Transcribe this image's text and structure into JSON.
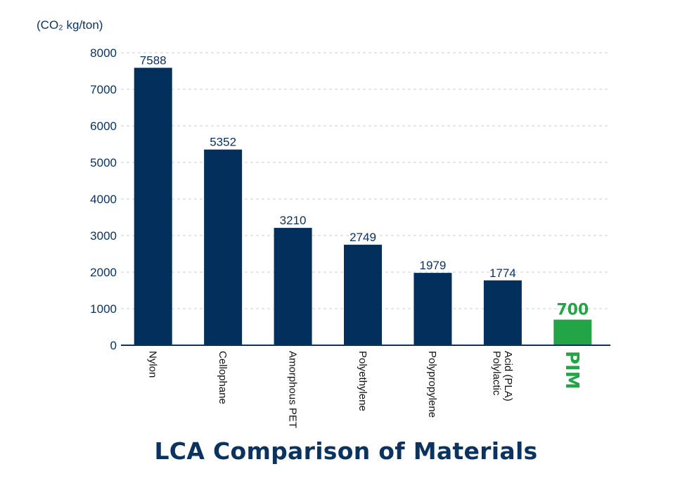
{
  "chart_data": {
    "type": "bar",
    "title": "LCA Comparison of Materials",
    "unit_label": "(CO₂ kg/ton)",
    "categories": [
      "Nylon",
      "Cellophane",
      "Amorphous PET",
      "Polyethylene",
      "Polypropylene",
      "Polylactic Acid (PLA)",
      "PIM"
    ],
    "category_lines": [
      [
        "Nylon"
      ],
      [
        "Cellophane"
      ],
      [
        "Amorphous PET"
      ],
      [
        "Polyethylene"
      ],
      [
        "Polypropylene"
      ],
      [
        "Polylactic",
        "Acid (PLA)"
      ],
      [
        "PIM"
      ]
    ],
    "values": [
      7588,
      5352,
      3210,
      2749,
      1979,
      1774,
      700
    ],
    "data_labels": [
      "7588",
      "5352",
      "3210",
      "2749",
      "1979",
      "1774",
      "700"
    ],
    "yticks": [
      0,
      1000,
      2000,
      3000,
      4000,
      5000,
      6000,
      7000,
      8000
    ],
    "ylim": [
      0,
      8000
    ],
    "grid": true,
    "colors": {
      "bar": "#022f5c",
      "highlight": "#22a447",
      "text": "#0b3360",
      "grid": "#cfcfcf",
      "axis": "#0b3360"
    },
    "highlight_category": "PIM"
  }
}
